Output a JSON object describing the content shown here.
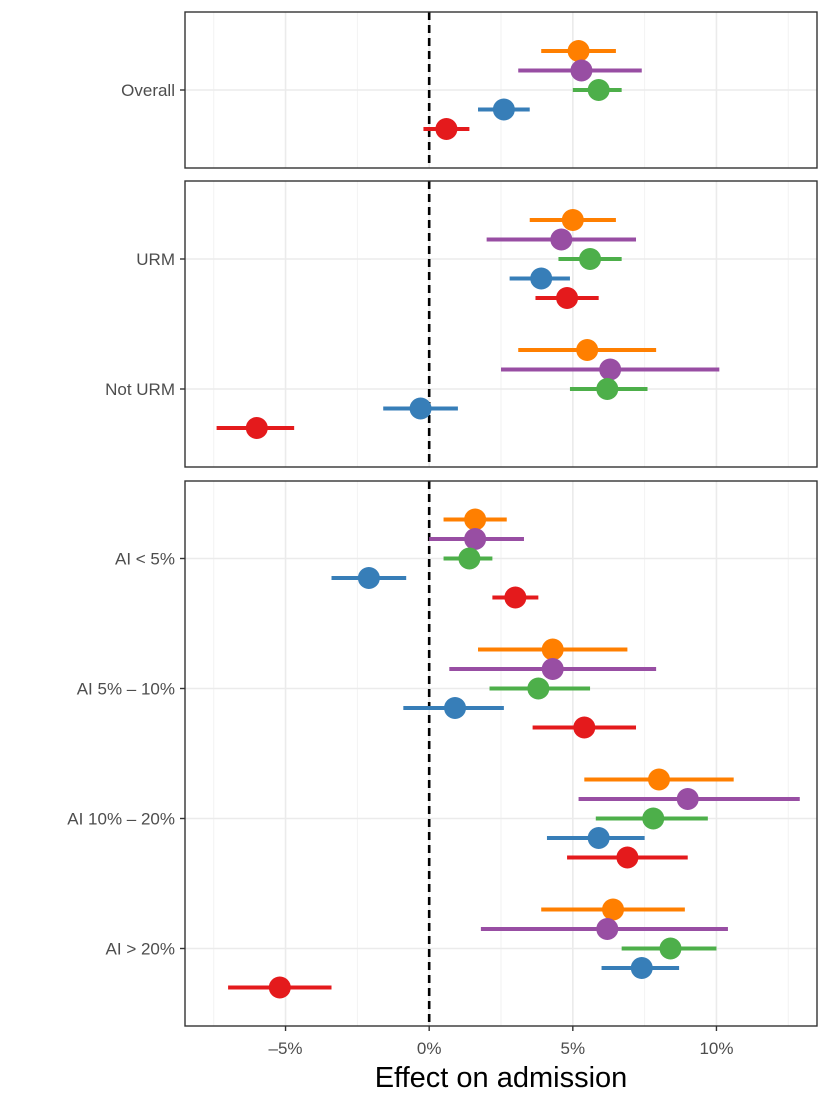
{
  "chart_data": {
    "type": "forest",
    "xlabel": "Effect on admission",
    "xlim": [
      -8.5,
      13.5
    ],
    "x_ticks": [
      -5,
      0,
      5,
      10
    ],
    "x_tick_labels": [
      "–5%",
      "0%",
      "5%",
      "10%"
    ],
    "reference_line": 0,
    "grid": true,
    "series_colors": [
      "#FF7F00",
      "#984EA3",
      "#4DAF4A",
      "#377EB8",
      "#E41A1C"
    ],
    "panels": [
      {
        "groups": [
          {
            "label": "Overall",
            "estimates": [
              {
                "value": 5.2,
                "ci": [
                  3.9,
                  6.5
                ]
              },
              {
                "value": 5.3,
                "ci": [
                  3.1,
                  7.4
                ]
              },
              {
                "value": 5.9,
                "ci": [
                  5.0,
                  6.7
                ]
              },
              {
                "value": 2.6,
                "ci": [
                  1.7,
                  3.5
                ]
              },
              {
                "value": 0.6,
                "ci": [
                  -0.2,
                  1.4
                ]
              }
            ]
          }
        ]
      },
      {
        "groups": [
          {
            "label": "URM",
            "estimates": [
              {
                "value": 5.0,
                "ci": [
                  3.5,
                  6.5
                ]
              },
              {
                "value": 4.6,
                "ci": [
                  2.0,
                  7.2
                ]
              },
              {
                "value": 5.6,
                "ci": [
                  4.5,
                  6.7
                ]
              },
              {
                "value": 3.9,
                "ci": [
                  2.8,
                  4.9
                ]
              },
              {
                "value": 4.8,
                "ci": [
                  3.7,
                  5.9
                ]
              }
            ]
          },
          {
            "label": "Not URM",
            "estimates": [
              {
                "value": 5.5,
                "ci": [
                  3.1,
                  7.9
                ]
              },
              {
                "value": 6.3,
                "ci": [
                  2.5,
                  10.1
                ]
              },
              {
                "value": 6.2,
                "ci": [
                  4.9,
                  7.6
                ]
              },
              {
                "value": -0.3,
                "ci": [
                  -1.6,
                  1.0
                ]
              },
              {
                "value": -6.0,
                "ci": [
                  -7.4,
                  -4.7
                ]
              }
            ]
          }
        ]
      },
      {
        "groups": [
          {
            "label": "AI < 5%",
            "estimates": [
              {
                "value": 1.6,
                "ci": [
                  0.5,
                  2.7
                ]
              },
              {
                "value": 1.6,
                "ci": [
                  0.0,
                  3.3
                ]
              },
              {
                "value": 1.4,
                "ci": [
                  0.5,
                  2.2
                ]
              },
              {
                "value": -2.1,
                "ci": [
                  -3.4,
                  -0.8
                ]
              },
              {
                "value": 3.0,
                "ci": [
                  2.2,
                  3.8
                ]
              }
            ]
          },
          {
            "label": "AI 5% – 10%",
            "estimates": [
              {
                "value": 4.3,
                "ci": [
                  1.7,
                  6.9
                ]
              },
              {
                "value": 4.3,
                "ci": [
                  0.7,
                  7.9
                ]
              },
              {
                "value": 3.8,
                "ci": [
                  2.1,
                  5.6
                ]
              },
              {
                "value": 0.9,
                "ci": [
                  -0.9,
                  2.6
                ]
              },
              {
                "value": 5.4,
                "ci": [
                  3.6,
                  7.2
                ]
              }
            ]
          },
          {
            "label": "AI 10% – 20%",
            "estimates": [
              {
                "value": 8.0,
                "ci": [
                  5.4,
                  10.6
                ]
              },
              {
                "value": 9.0,
                "ci": [
                  5.2,
                  12.9
                ]
              },
              {
                "value": 7.8,
                "ci": [
                  5.8,
                  9.7
                ]
              },
              {
                "value": 5.9,
                "ci": [
                  4.1,
                  7.5
                ]
              },
              {
                "value": 6.9,
                "ci": [
                  4.8,
                  9.0
                ]
              }
            ]
          },
          {
            "label": "AI > 20%",
            "estimates": [
              {
                "value": 6.4,
                "ci": [
                  3.9,
                  8.9
                ]
              },
              {
                "value": 6.2,
                "ci": [
                  1.8,
                  10.4
                ]
              },
              {
                "value": 8.4,
                "ci": [
                  6.7,
                  10.0
                ]
              },
              {
                "value": 7.4,
                "ci": [
                  6.0,
                  8.7
                ]
              },
              {
                "value": -5.2,
                "ci": [
                  -7.0,
                  -3.4
                ]
              }
            ]
          }
        ]
      }
    ]
  }
}
